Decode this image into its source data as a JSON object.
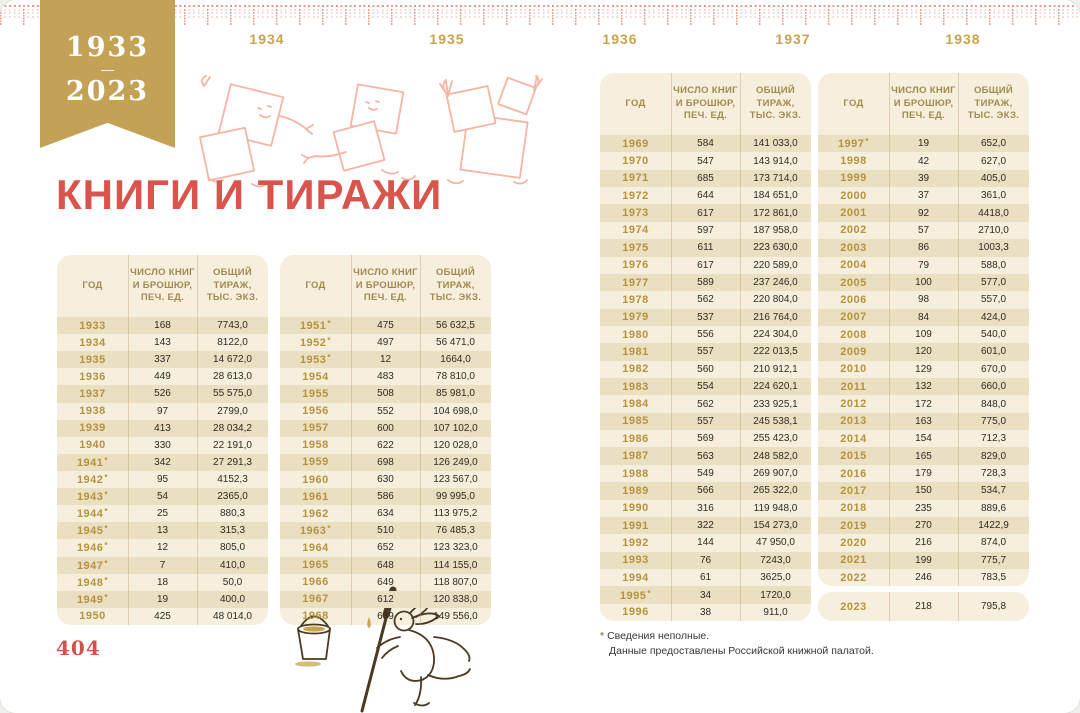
{
  "ribbon": {
    "from": "1933",
    "dash": "—",
    "to": "2023"
  },
  "timeline": {
    "years": [
      "1934",
      "1935",
      "1936",
      "1937",
      "1938"
    ]
  },
  "title": "КНИГИ И ТИРАЖИ",
  "table_headers": {
    "year": "ГОД",
    "count": "ЧИСЛО КНИГ\nИ БРОШЮР,\nПЕЧ. ЕД.",
    "total": "ОБЩИЙ\nТИРАЖ,\nТЫС. ЭКЗ."
  },
  "tables": [
    {
      "rows": [
        [
          "1933",
          "",
          "168",
          "7743,0"
        ],
        [
          "1934",
          "",
          "143",
          "8122,0"
        ],
        [
          "1935",
          "",
          "337",
          "14 672,0"
        ],
        [
          "1936",
          "",
          "449",
          "28 613,0"
        ],
        [
          "1937",
          "",
          "526",
          "55 575,0"
        ],
        [
          "1938",
          "",
          "97",
          "2799,0"
        ],
        [
          "1939",
          "",
          "413",
          "28 034,2"
        ],
        [
          "1940",
          "",
          "330",
          "22 191,0"
        ],
        [
          "1941",
          "*",
          "342",
          "27 291,3"
        ],
        [
          "1942",
          "*",
          "95",
          "4152,3"
        ],
        [
          "1943",
          "*",
          "54",
          "2365,0"
        ],
        [
          "1944",
          "*",
          "25",
          "880,3"
        ],
        [
          "1945",
          "*",
          "13",
          "315,3"
        ],
        [
          "1946",
          "*",
          "12",
          "805,0"
        ],
        [
          "1947",
          "*",
          "7",
          "410,0"
        ],
        [
          "1948",
          "*",
          "18",
          "50,0"
        ],
        [
          "1949",
          "*",
          "19",
          "400,0"
        ],
        [
          "1950",
          "",
          "425",
          "48 014,0"
        ]
      ]
    },
    {
      "rows": [
        [
          "1951",
          "*",
          "475",
          "56 632,5"
        ],
        [
          "1952",
          "*",
          "497",
          "56 471,0"
        ],
        [
          "1953",
          "*",
          "12",
          "1664,0"
        ],
        [
          "1954",
          "",
          "483",
          "78 810,0"
        ],
        [
          "1955",
          "",
          "508",
          "85 981,0"
        ],
        [
          "1956",
          "",
          "552",
          "104 698,0"
        ],
        [
          "1957",
          "",
          "600",
          "107 102,0"
        ],
        [
          "1958",
          "",
          "622",
          "120 028,0"
        ],
        [
          "1959",
          "",
          "698",
          "126 249,0"
        ],
        [
          "1960",
          "",
          "630",
          "123 567,0"
        ],
        [
          "1961",
          "",
          "586",
          "99 995,0"
        ],
        [
          "1962",
          "",
          "634",
          "113 975,2"
        ],
        [
          "1963",
          "*",
          "510",
          "76 485,3"
        ],
        [
          "1964",
          "",
          "652",
          "123 323,0"
        ],
        [
          "1965",
          "",
          "648",
          "114 155,0"
        ],
        [
          "1966",
          "",
          "649",
          "118 807,0"
        ],
        [
          "1967",
          "",
          "612",
          "120 838,0"
        ],
        [
          "1968",
          "",
          "639",
          "149 556,0"
        ]
      ]
    },
    {
      "rows": [
        [
          "1969",
          "",
          "584",
          "141 033,0"
        ],
        [
          "1970",
          "",
          "547",
          "143 914,0"
        ],
        [
          "1971",
          "",
          "685",
          "173 714,0"
        ],
        [
          "1972",
          "",
          "644",
          "184 651,0"
        ],
        [
          "1973",
          "",
          "617",
          "172 861,0"
        ],
        [
          "1974",
          "",
          "597",
          "187 958,0"
        ],
        [
          "1975",
          "",
          "611",
          "223 630,0"
        ],
        [
          "1976",
          "",
          "617",
          "220 589,0"
        ],
        [
          "1977",
          "",
          "589",
          "237 246,0"
        ],
        [
          "1978",
          "",
          "562",
          "220 804,0"
        ],
        [
          "1979",
          "",
          "537",
          "216 764,0"
        ],
        [
          "1980",
          "",
          "556",
          "224 304,0"
        ],
        [
          "1981",
          "",
          "557",
          "222 013,5"
        ],
        [
          "1982",
          "",
          "560",
          "210 912,1"
        ],
        [
          "1983",
          "",
          "554",
          "224 620,1"
        ],
        [
          "1984",
          "",
          "562",
          "233 925,1"
        ],
        [
          "1985",
          "",
          "557",
          "245 538,1"
        ],
        [
          "1986",
          "",
          "569",
          "255 423,0"
        ],
        [
          "1987",
          "",
          "563",
          "248 582,0"
        ],
        [
          "1988",
          "",
          "549",
          "269 907,0"
        ],
        [
          "1989",
          "",
          "566",
          "265 322,0"
        ],
        [
          "1990",
          "",
          "316",
          "119 948,0"
        ],
        [
          "1991",
          "",
          "322",
          "154 273,0"
        ],
        [
          "1992",
          "",
          "144",
          "47 950,0"
        ],
        [
          "1993",
          "",
          "76",
          "7243,0"
        ],
        [
          "1994",
          "",
          "61",
          "3625,0"
        ],
        [
          "1995",
          "*",
          "34",
          "1720,0"
        ],
        [
          "1996",
          "",
          "38",
          "911,0"
        ]
      ]
    },
    {
      "rows": [
        [
          "1997",
          "*",
          "19",
          "652,0"
        ],
        [
          "1998",
          "",
          "42",
          "627,0"
        ],
        [
          "1999",
          "",
          "39",
          "405,0"
        ],
        [
          "2000",
          "",
          "37",
          "361,0"
        ],
        [
          "2001",
          "",
          "92",
          "4418,0"
        ],
        [
          "2002",
          "",
          "57",
          "2710,0"
        ],
        [
          "2003",
          "",
          "86",
          "1003,3"
        ],
        [
          "2004",
          "",
          "79",
          "588,0"
        ],
        [
          "2005",
          "",
          "100",
          "577,0"
        ],
        [
          "2006",
          "",
          "98",
          "557,0"
        ],
        [
          "2007",
          "",
          "84",
          "424,0"
        ],
        [
          "2008",
          "",
          "109",
          "540,0"
        ],
        [
          "2009",
          "",
          "120",
          "601,0"
        ],
        [
          "2010",
          "",
          "129",
          "670,0"
        ],
        [
          "2011",
          "",
          "132",
          "660,0"
        ],
        [
          "2012",
          "",
          "172",
          "848,0"
        ],
        [
          "2013",
          "",
          "163",
          "775,0"
        ],
        [
          "2014",
          "",
          "154",
          "712,3"
        ],
        [
          "2015",
          "",
          "165",
          "829,0"
        ],
        [
          "2016",
          "",
          "179",
          "728,3"
        ],
        [
          "2017",
          "",
          "150",
          "534,7"
        ],
        [
          "2018",
          "",
          "235",
          "889,6"
        ],
        [
          "2019",
          "",
          "270",
          "1422,9"
        ],
        [
          "2020",
          "",
          "216",
          "874,0"
        ],
        [
          "2021",
          "",
          "199",
          "775,7"
        ],
        [
          "2022",
          "",
          "246",
          "783,5"
        ]
      ],
      "separate_row": [
        "2023",
        "",
        "218",
        "795,8"
      ]
    }
  ],
  "footnote": {
    "mark": "*",
    "line1": "Сведения неполные.",
    "line2": "Данные предоставлены Российской книжной палатой."
  },
  "page_number": "404",
  "colors": {
    "accent_gold": "#c3a258",
    "title_red": "#d8544c",
    "tick_pink": "#eda89b",
    "table_bg": "#f7efdd",
    "row_stripe": "#ebdfc2",
    "year_gold": "#b6923e"
  }
}
